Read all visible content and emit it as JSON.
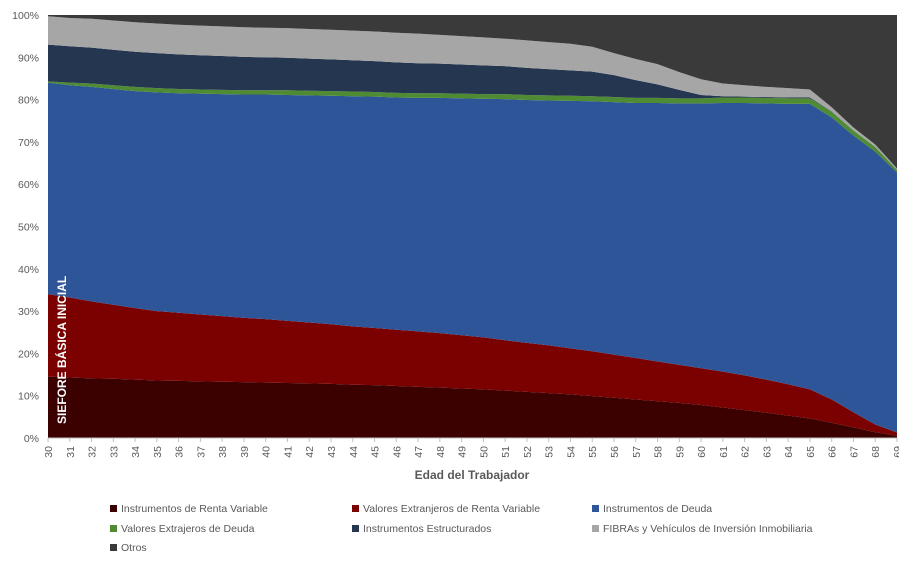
{
  "chart_data": {
    "type": "area",
    "stacked": true,
    "percent": true,
    "xlabel": "Edad del Trabajador",
    "ylabel": "",
    "ylim": [
      0,
      100
    ],
    "x": [
      30,
      31,
      32,
      33,
      34,
      35,
      36,
      37,
      38,
      39,
      40,
      41,
      42,
      43,
      44,
      45,
      46,
      47,
      48,
      49,
      50,
      51,
      52,
      53,
      54,
      55,
      56,
      57,
      58,
      59,
      60,
      61,
      62,
      63,
      64,
      65,
      66,
      67,
      68,
      69
    ],
    "y_ticks": [
      "0%",
      "10%",
      "20%",
      "30%",
      "40%",
      "50%",
      "60%",
      "70%",
      "80%",
      "90%",
      "100%"
    ],
    "annotation": "SIEFORE BÁSICA INICIAL",
    "grid": false,
    "legend_position": "bottom",
    "series": [
      {
        "name": "Instrumentos de Renta Variable",
        "color": "#3b0000",
        "values": [
          14.5,
          14.3,
          14.1,
          14.0,
          13.8,
          13.6,
          13.5,
          13.4,
          13.3,
          13.2,
          13.1,
          13.0,
          12.9,
          12.8,
          12.6,
          12.5,
          12.3,
          12.1,
          11.9,
          11.7,
          11.5,
          11.2,
          10.9,
          10.6,
          10.3,
          9.9,
          9.5,
          9.1,
          8.7,
          8.3,
          7.8,
          7.2,
          6.6,
          6.0,
          5.3,
          4.6,
          3.6,
          2.5,
          1.4,
          0.5
        ]
      },
      {
        "name": "Valores Extranjeros de Renta Variable",
        "color": "#7b0000",
        "values": [
          19.5,
          18.9,
          18.2,
          17.5,
          16.9,
          16.4,
          16.1,
          15.8,
          15.5,
          15.2,
          15.0,
          14.7,
          14.4,
          14.1,
          13.8,
          13.5,
          13.3,
          13.1,
          12.9,
          12.6,
          12.3,
          11.9,
          11.6,
          11.3,
          10.9,
          10.6,
          10.2,
          9.8,
          9.4,
          9.0,
          8.7,
          8.5,
          8.2,
          7.8,
          7.4,
          6.9,
          5.5,
          3.6,
          1.8,
          0.8
        ]
      },
      {
        "name": "Instrumentos de Deuda",
        "color": "#2e5597",
        "values": [
          50.0,
          50.2,
          50.7,
          51.0,
          51.3,
          51.7,
          51.9,
          52.2,
          52.5,
          52.8,
          53.1,
          53.4,
          53.7,
          54.0,
          54.4,
          54.7,
          54.9,
          55.2,
          55.6,
          56.0,
          56.4,
          57.0,
          57.4,
          57.9,
          58.5,
          59.1,
          59.7,
          60.3,
          61.1,
          61.8,
          62.6,
          63.5,
          64.4,
          65.3,
          66.3,
          67.5,
          66.7,
          65.4,
          64.5,
          61.5
        ]
      },
      {
        "name": "Valores Extrajeros de Deuda",
        "color": "#4e8b32",
        "values": [
          0.3,
          0.6,
          0.8,
          0.9,
          1.0,
          1.0,
          1.0,
          1.0,
          1.0,
          1.0,
          1.0,
          1.1,
          1.1,
          1.1,
          1.1,
          1.1,
          1.1,
          1.1,
          1.1,
          1.1,
          1.1,
          1.2,
          1.2,
          1.2,
          1.2,
          1.2,
          1.2,
          1.2,
          1.2,
          1.2,
          1.2,
          1.3,
          1.3,
          1.3,
          1.3,
          1.3,
          1.3,
          1.2,
          1.1,
          0.6
        ]
      },
      {
        "name": "Instrumentos Estructurados",
        "color": "#253650",
        "values": [
          8.7,
          8.6,
          8.5,
          8.4,
          8.3,
          8.3,
          8.2,
          8.1,
          8.0,
          7.9,
          7.8,
          7.7,
          7.6,
          7.5,
          7.4,
          7.3,
          7.2,
          7.1,
          7.0,
          6.9,
          6.8,
          6.6,
          6.4,
          6.2,
          6.0,
          5.8,
          5.2,
          4.2,
          3.2,
          2.0,
          0.8,
          0.3,
          0.2,
          0.2,
          0.2,
          0.2,
          0.1,
          0.0,
          0.0,
          0.0
        ]
      },
      {
        "name": "FIBRAs y Vehículos de Inversión Inmobiliaria",
        "color": "#a6a6a6",
        "values": [
          6.7,
          6.7,
          6.8,
          6.9,
          7.0,
          7.0,
          7.0,
          7.0,
          7.0,
          7.0,
          7.0,
          7.0,
          7.0,
          7.0,
          7.0,
          7.0,
          7.0,
          7.0,
          6.8,
          6.7,
          6.6,
          6.5,
          6.5,
          6.4,
          6.3,
          5.9,
          5.2,
          5.0,
          4.8,
          4.2,
          3.7,
          3.0,
          2.7,
          2.4,
          2.2,
          1.9,
          1.0,
          0.7,
          0.6,
          0.3
        ]
      },
      {
        "name": "Otros",
        "color": "#3a3a3a",
        "values": [
          0.3,
          0.7,
          0.9,
          1.3,
          1.7,
          2.0,
          2.3,
          2.5,
          2.7,
          2.9,
          3.0,
          3.1,
          3.3,
          3.5,
          3.7,
          3.9,
          4.2,
          4.4,
          4.7,
          5.0,
          5.3,
          5.6,
          6.0,
          6.4,
          6.8,
          7.5,
          9.0,
          10.4,
          11.6,
          13.5,
          15.2,
          16.2,
          16.6,
          17.0,
          17.3,
          17.6,
          21.8,
          26.6,
          30.6,
          36.3
        ]
      }
    ]
  }
}
